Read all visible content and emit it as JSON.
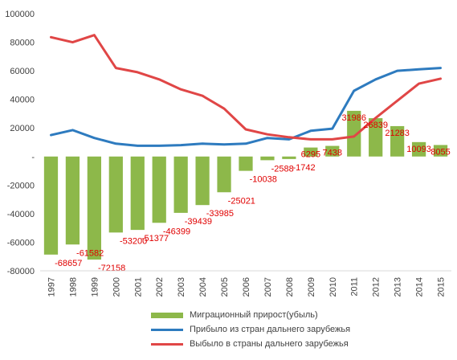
{
  "chart_data": {
    "type": "bar+line",
    "categories": [
      "1997",
      "1998",
      "1999",
      "2000",
      "2001",
      "2002",
      "2003",
      "2004",
      "2005",
      "2006",
      "2007",
      "2008",
      "2009",
      "2010",
      "2011",
      "2012",
      "2013",
      "2014",
      "2015"
    ],
    "ylim": [
      -80000,
      100000
    ],
    "yticks": [
      "100000",
      "80000",
      "60000",
      "40000",
      "20000",
      "-",
      "-20000",
      "-40000",
      "-60000",
      "-80000"
    ],
    "grid": false,
    "legend_position": "bottom",
    "series": [
      {
        "name": "Миграционный прирост(убыль)",
        "type": "bar",
        "color": "#8db84a",
        "values": [
          -68657,
          -61582,
          -72158,
          -53200,
          -51377,
          -46399,
          -39439,
          -33985,
          -25021,
          -10038,
          -2588,
          -1742,
          6295,
          7438,
          31986,
          26839,
          21283,
          10093,
          8055
        ],
        "labels": [
          "-68657",
          "-61582",
          "-72158",
          "-53200",
          "-51377",
          "-46399",
          "-39439",
          "-33985",
          "-25021",
          "-10038",
          "-2588",
          "-1742",
          "6295",
          "7438",
          "31986",
          "26839",
          "21283",
          "10093",
          "8055"
        ]
      },
      {
        "name": "Прибыло из стран дальнего зарубежья",
        "type": "line",
        "color": "#2e7bbf",
        "values": [
          15000,
          18500,
          13000,
          9000,
          7500,
          7500,
          8000,
          9000,
          8500,
          9000,
          13000,
          12000,
          18000,
          19500,
          46000,
          54000,
          60000,
          61000,
          62000
        ]
      },
      {
        "name": "Выбыло в страны дальнего зарубежья",
        "type": "line",
        "color": "#e04646",
        "values": [
          83500,
          80000,
          85000,
          62000,
          59000,
          54000,
          47000,
          42500,
          33500,
          19000,
          15500,
          13500,
          12000,
          12000,
          14000,
          27000,
          39000,
          51000,
          54500
        ]
      }
    ]
  }
}
